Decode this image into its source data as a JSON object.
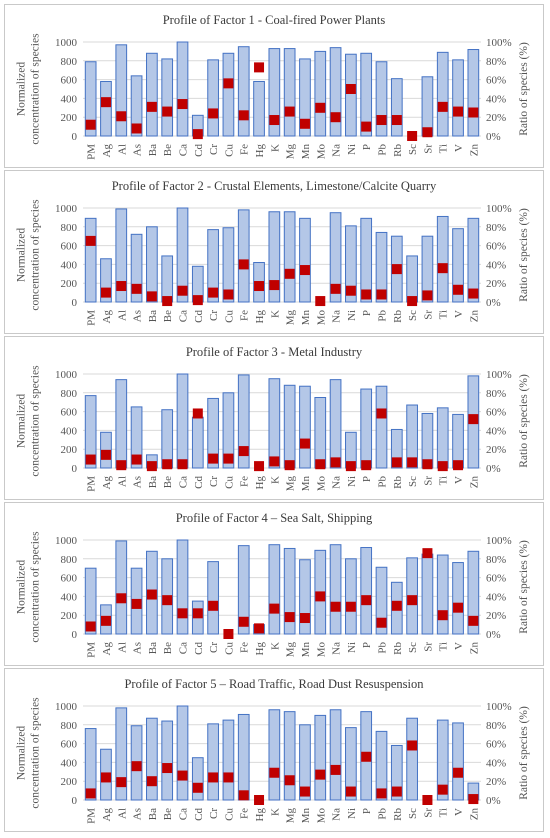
{
  "chart_data": [
    {
      "type": "bar",
      "title": "Profile of Factor 1 - Coal-fired Power Plants",
      "ylabel": "Normalized concentration of species",
      "y2label": "Ratio of species (%)",
      "ylim": [
        0,
        1000
      ],
      "y2lim": [
        0,
        100
      ],
      "yticks": [
        "0",
        "200",
        "400",
        "600",
        "800",
        "1000"
      ],
      "y2ticks": [
        "0%",
        "20%",
        "40%",
        "60%",
        "80%",
        "100%"
      ],
      "categories": [
        "PM",
        "Ag",
        "Al",
        "As",
        "Ba",
        "Be",
        "Ca",
        "Cd",
        "Cr",
        "Cu",
        "Fe",
        "Hg",
        "K",
        "Mg",
        "Mn",
        "Mo",
        "Na",
        "Ni",
        "P",
        "Pb",
        "Rb",
        "Sc",
        "Sr",
        "Ti",
        "V",
        "Zn"
      ],
      "series": [
        {
          "values": [
            790,
            580,
            970,
            640,
            880,
            820,
            1000,
            220,
            810,
            880,
            950,
            580,
            930,
            930,
            820,
            900,
            940,
            870,
            880,
            790,
            610,
            0,
            630,
            890,
            810,
            920
          ]
        },
        {
          "values": [
            12,
            36,
            21,
            8,
            31,
            26,
            34,
            2,
            24,
            56,
            22,
            73,
            17,
            26,
            13,
            30,
            20,
            50,
            10,
            17,
            17,
            0,
            4,
            31,
            26,
            25
          ]
        }
      ],
      "series_types": [
        "bar",
        "marker"
      ],
      "series_axes": [
        "left",
        "right"
      ],
      "colors": {
        "bar_fill": "#b4c7e7",
        "bar_edge": "#4472c4",
        "marker": "#c00000"
      },
      "grid": true
    },
    {
      "type": "bar",
      "title": "Profile of Factor 2 - Crustal Elements, Limestone/Calcite Quarry",
      "ylabel": "Normalized concentration of species",
      "y2label": "Ratio of species (%)",
      "ylim": [
        0,
        1000
      ],
      "y2lim": [
        0,
        100
      ],
      "yticks": [
        "0",
        "200",
        "400",
        "600",
        "800",
        "1000"
      ],
      "y2ticks": [
        "0%",
        "20%",
        "40%",
        "60%",
        "80%",
        "100%"
      ],
      "categories": [
        "PM",
        "Ag",
        "Al",
        "As",
        "Ba",
        "Be",
        "Ca",
        "Cd",
        "Cr",
        "Cu",
        "Fe",
        "Hg",
        "K",
        "Mg",
        "Mn",
        "Mo",
        "Na",
        "Ni",
        "P",
        "Pb",
        "Rb",
        "Sc",
        "Sr",
        "Ti",
        "V",
        "Zn"
      ],
      "series": [
        {
          "values": [
            890,
            460,
            990,
            720,
            800,
            490,
            1000,
            380,
            770,
            790,
            980,
            420,
            960,
            960,
            890,
            0,
            950,
            810,
            890,
            740,
            700,
            490,
            700,
            910,
            780,
            890
          ]
        },
        {
          "values": [
            65,
            10,
            17,
            14,
            6,
            1,
            12,
            2,
            10,
            8,
            40,
            17,
            18,
            30,
            34,
            1,
            14,
            12,
            8,
            8,
            35,
            1,
            7,
            36,
            13,
            9
          ]
        }
      ],
      "series_types": [
        "bar",
        "marker"
      ],
      "series_axes": [
        "left",
        "right"
      ],
      "colors": {
        "bar_fill": "#b4c7e7",
        "bar_edge": "#4472c4",
        "marker": "#c00000"
      },
      "grid": true
    },
    {
      "type": "bar",
      "title": "Profile of Factor 3 - Metal Industry",
      "ylabel": "Normalized concentration of species",
      "y2label": "Ratio of species (%)",
      "ylim": [
        0,
        1000
      ],
      "y2lim": [
        0,
        100
      ],
      "yticks": [
        "0",
        "200",
        "400",
        "600",
        "800",
        "1000"
      ],
      "y2ticks": [
        "0%",
        "20%",
        "40%",
        "60%",
        "80%",
        "100%"
      ],
      "categories": [
        "PM",
        "Ag",
        "Al",
        "As",
        "Ba",
        "Be",
        "Ca",
        "Cd",
        "Cr",
        "Cu",
        "Fe",
        "Hg",
        "K",
        "Mg",
        "Mn",
        "Mo",
        "Na",
        "Ni",
        "P",
        "Pb",
        "Rb",
        "Sc",
        "Sr",
        "Ti",
        "V",
        "Zn"
      ],
      "series": [
        {
          "values": [
            770,
            380,
            940,
            650,
            140,
            620,
            1000,
            540,
            740,
            800,
            990,
            0,
            950,
            880,
            870,
            750,
            940,
            380,
            840,
            870,
            410,
            670,
            580,
            640,
            570,
            980
          ]
        },
        {
          "values": [
            9,
            14,
            3,
            9,
            2,
            4,
            4,
            58,
            10,
            10,
            18,
            2,
            7,
            3,
            26,
            4,
            6,
            2,
            3,
            58,
            6,
            6,
            4,
            2,
            3,
            52
          ]
        }
      ],
      "series_types": [
        "bar",
        "marker"
      ],
      "series_axes": [
        "left",
        "right"
      ],
      "colors": {
        "bar_fill": "#b4c7e7",
        "bar_edge": "#4472c4",
        "marker": "#c00000"
      },
      "grid": true
    },
    {
      "type": "bar",
      "title": "Profile of Factor 4 – Sea Salt, Shipping",
      "ylabel": "Normalized concentration of species",
      "y2label": "Ratio of species (%)",
      "ylim": [
        0,
        1000
      ],
      "y2lim": [
        0,
        100
      ],
      "yticks": [
        "0",
        "200",
        "400",
        "600",
        "800",
        "1000"
      ],
      "y2ticks": [
        "0%",
        "20%",
        "40%",
        "60%",
        "80%",
        "100%"
      ],
      "categories": [
        "PM",
        "Ag",
        "Al",
        "As",
        "Ba",
        "Be",
        "Ca",
        "Cd",
        "Cr",
        "Cu",
        "Fe",
        "Hg",
        "K",
        "Mg",
        "Mn",
        "Mo",
        "Na",
        "Ni",
        "P",
        "Pb",
        "Rb",
        "Sc",
        "Sr",
        "Ti",
        "V",
        "Zn"
      ],
      "series": [
        {
          "values": [
            700,
            310,
            990,
            700,
            880,
            800,
            1000,
            350,
            770,
            0,
            940,
            100,
            950,
            910,
            790,
            890,
            950,
            800,
            920,
            710,
            550,
            810,
            850,
            840,
            760,
            880
          ]
        },
        {
          "values": [
            8,
            14,
            38,
            32,
            42,
            36,
            22,
            22,
            30,
            0,
            13,
            6,
            27,
            18,
            17,
            40,
            29,
            29,
            36,
            12,
            30,
            36,
            86,
            20,
            28,
            14
          ]
        }
      ],
      "series_types": [
        "bar",
        "marker"
      ],
      "series_axes": [
        "left",
        "right"
      ],
      "colors": {
        "bar_fill": "#b4c7e7",
        "bar_edge": "#4472c4",
        "marker": "#c00000"
      },
      "grid": true
    },
    {
      "type": "bar",
      "title": "Profile of Factor 5 – Road Traffic, Road Dust Resuspension",
      "ylabel": "Normalized concentration of species",
      "y2label": "Ratio of species (%)",
      "ylim": [
        0,
        1000
      ],
      "y2lim": [
        0,
        100
      ],
      "yticks": [
        "0",
        "200",
        "400",
        "600",
        "800",
        "1000"
      ],
      "y2ticks": [
        "0%",
        "20%",
        "40%",
        "60%",
        "80%",
        "100%"
      ],
      "categories": [
        "PM",
        "Ag",
        "Al",
        "As",
        "Ba",
        "Be",
        "Ca",
        "Cd",
        "Cr",
        "Cu",
        "Fe",
        "Hg",
        "K",
        "Mg",
        "Mn",
        "Mo",
        "Na",
        "Ni",
        "P",
        "Pb",
        "Rb",
        "Sc",
        "Sr",
        "Ti",
        "V",
        "Zn"
      ],
      "series": [
        {
          "values": [
            760,
            540,
            980,
            790,
            870,
            840,
            1000,
            450,
            810,
            850,
            910,
            0,
            960,
            940,
            800,
            900,
            960,
            770,
            940,
            730,
            580,
            870,
            0,
            850,
            820,
            180
          ]
        },
        {
          "values": [
            7,
            24,
            19,
            36,
            20,
            34,
            26,
            13,
            24,
            24,
            5,
            0,
            29,
            21,
            9,
            27,
            32,
            9,
            46,
            7,
            9,
            58,
            0,
            11,
            29,
            1
          ]
        }
      ],
      "series_types": [
        "bar",
        "marker"
      ],
      "series_axes": [
        "left",
        "right"
      ],
      "colors": {
        "bar_fill": "#b4c7e7",
        "bar_edge": "#4472c4",
        "marker": "#c00000"
      },
      "grid": true
    }
  ]
}
